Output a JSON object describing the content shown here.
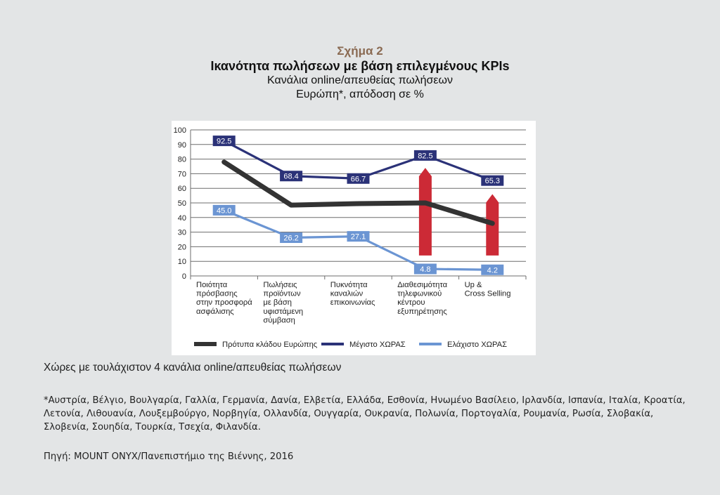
{
  "figure_label": "Σχήμα 2",
  "title": "Ικανότητα πωλήσεων με βάση επιλεγμένους KPIs",
  "subtitle": "Κανάλια online/απευθείας πωλήσεων",
  "subtitle2": "Ευρώπη*, απόδοση σε %",
  "chart_data": {
    "type": "line",
    "categories": [
      [
        "Ποιότητα",
        "πρόσβασης",
        "στην προσφορά",
        "ασφάλισης"
      ],
      [
        "Πωλήσεις",
        "προϊόντων",
        "με βάση",
        "υφιστάμενη",
        "σύμβαση"
      ],
      [
        "Πυκνότητα",
        "καναλιών",
        "επικοινωνίας"
      ],
      [
        "Διαθεσιμότητα",
        "τηλεφωνικού",
        "κέντρου",
        "εξυπηρέτησης"
      ],
      [
        "Up &",
        "Cross Selling"
      ]
    ],
    "ylim": [
      0,
      100
    ],
    "yticks": [
      "0",
      "10",
      "20",
      "30",
      "40",
      "50",
      "60",
      "70",
      "80",
      "90",
      "100"
    ],
    "grid": true,
    "legend_position": "bottom",
    "series": [
      {
        "name": "Πρότυπα κλάδου Ευρώπης",
        "values": [
          78,
          48.5,
          49.5,
          50,
          36
        ],
        "color": "#333333",
        "labeled": false
      },
      {
        "name": "Μέγιστο ΧΩΡΑΣ",
        "values": [
          92.5,
          68.4,
          66.7,
          82.5,
          65.3
        ],
        "labels": [
          "92.5",
          "68.4",
          "66.7",
          "82.5",
          "65.3"
        ],
        "color": "#2b3278",
        "labeled": true
      },
      {
        "name": "Ελάχιστο ΧΩΡΑΣ",
        "values": [
          45.0,
          26.2,
          27.1,
          4.8,
          4.2
        ],
        "labels": [
          "45.0",
          "26.2",
          "27.1",
          "4.8",
          "4.2"
        ],
        "color": "#6b95d3",
        "labeled": true
      }
    ],
    "annotations": [
      {
        "type": "arrow-up",
        "category_index": 3,
        "from": 14,
        "to": 74,
        "color": "#cc2a36"
      },
      {
        "type": "arrow-up",
        "category_index": 4,
        "from": 14,
        "to": 56,
        "color": "#cc2a36"
      }
    ]
  },
  "caption": "Χώρες με τουλάχιστον 4 κανάλια online/απευθείας πωλήσεων",
  "countries_note": "*Αυστρία, Βέλγιο, Βουλγαρία, Γαλλία, Γερμανία, Δανία, Ελβετία, Ελλάδα, Εσθονία, Ηνωμένο Βασίλειο, Ιρλανδία, Ισπανία, Ιταλία, Κροατία, Λετονία, Λιθουανία, Λουξεμβούργο, Νορβηγία, Ολλανδία, Ουγγαρία, Ουκρανία, Πολωνία, Πορτογαλία, Ρουμανία, Ρωσία, Σλοβακία, Σλοβενία, Σουηδία, Τουρκία, Τσεχία, Φιλανδία.",
  "source": "Πηγή: MOUNT ONYX/Πανεπιστήμιο της Βιέννης, 2016"
}
